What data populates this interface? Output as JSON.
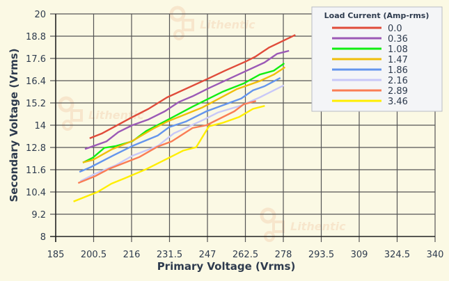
{
  "chart_data": {
    "type": "line",
    "title": "",
    "xlabel": "Primary Voltage (Vrms)",
    "ylabel": "Secondary Voltage (Vrms)",
    "xlim": [
      185,
      340
    ],
    "ylim": [
      8,
      20
    ],
    "xticks": [
      "185",
      "200.5",
      "216",
      "231.5",
      "247",
      "262.5",
      "278",
      "293.5",
      "309",
      "324.5",
      "340"
    ],
    "yticks": [
      "8",
      "9.2",
      "10.4",
      "11.6",
      "12.8",
      "14",
      "15.2",
      "16.4",
      "17.6",
      "18.8",
      "20"
    ],
    "grid": true,
    "legend": {
      "title": "Load Current (Amp-rms)",
      "placement": "top-right"
    },
    "watermark": "Lithentic",
    "series": [
      {
        "name": "0.0",
        "color": "#e04b3a",
        "points": [
          [
            199.2,
            13.31
          ],
          [
            204.0,
            13.56
          ],
          [
            216.3,
            14.44
          ],
          [
            222.9,
            14.88
          ],
          [
            230.5,
            15.5
          ],
          [
            247.1,
            16.5
          ],
          [
            254.2,
            16.94
          ],
          [
            262.7,
            17.44
          ],
          [
            266.5,
            17.69
          ],
          [
            272.2,
            18.19
          ],
          [
            282.6,
            18.85
          ]
        ]
      },
      {
        "name": "0.36",
        "color": "#9b59b6",
        "points": [
          [
            197.3,
            12.73
          ],
          [
            205.8,
            13.13
          ],
          [
            210.6,
            13.63
          ],
          [
            216.3,
            14.0
          ],
          [
            222.9,
            14.31
          ],
          [
            229.6,
            14.75
          ],
          [
            235.3,
            15.25
          ],
          [
            240.9,
            15.56
          ],
          [
            247.6,
            16.0
          ],
          [
            259.9,
            16.75
          ],
          [
            270.3,
            17.38
          ],
          [
            275.5,
            17.85
          ],
          [
            280.0,
            18.0
          ]
        ]
      },
      {
        "name": "1.08",
        "color": "#11ee11",
        "points": [
          [
            196.4,
            12.0
          ],
          [
            200.2,
            12.25
          ],
          [
            204.9,
            12.78
          ],
          [
            209.7,
            12.88
          ],
          [
            216.3,
            13.13
          ],
          [
            222.0,
            13.69
          ],
          [
            230.5,
            14.27
          ],
          [
            240.9,
            15.0
          ],
          [
            253.3,
            15.81
          ],
          [
            261.8,
            16.25
          ],
          [
            268.4,
            16.73
          ],
          [
            274.1,
            16.94
          ],
          [
            278.1,
            17.31
          ]
        ]
      },
      {
        "name": "1.47",
        "color": "#f0be0a",
        "points": [
          [
            196.4,
            12.0
          ],
          [
            200.2,
            12.13
          ],
          [
            207.8,
            12.69
          ],
          [
            216.3,
            13.15
          ],
          [
            224.8,
            13.81
          ],
          [
            230.5,
            14.19
          ],
          [
            244.7,
            14.94
          ],
          [
            258.9,
            15.94
          ],
          [
            268.4,
            16.38
          ],
          [
            274.1,
            16.73
          ],
          [
            278.4,
            17.1
          ]
        ]
      },
      {
        "name": "1.86",
        "color": "#6495ed",
        "points": [
          [
            195.0,
            11.5
          ],
          [
            199.2,
            11.73
          ],
          [
            208.7,
            12.38
          ],
          [
            216.3,
            12.88
          ],
          [
            226.7,
            13.44
          ],
          [
            231.4,
            13.9
          ],
          [
            238.1,
            14.19
          ],
          [
            246.6,
            14.75
          ],
          [
            260.8,
            15.44
          ],
          [
            265.6,
            15.88
          ],
          [
            270.3,
            16.1
          ],
          [
            276.5,
            16.53
          ]
        ]
      },
      {
        "name": "2.16",
        "color": "#c8c8f8",
        "points": [
          [
            195.4,
            11.0
          ],
          [
            201.1,
            11.38
          ],
          [
            209.7,
            11.85
          ],
          [
            216.3,
            12.35
          ],
          [
            226.7,
            12.88
          ],
          [
            233.3,
            13.56
          ],
          [
            245.7,
            14.31
          ],
          [
            251.4,
            14.69
          ],
          [
            260.8,
            15.06
          ],
          [
            268.4,
            15.5
          ],
          [
            277.9,
            16.13
          ]
        ]
      },
      {
        "name": "2.89",
        "color": "#fa7d55",
        "points": [
          [
            194.5,
            10.9
          ],
          [
            201.1,
            11.25
          ],
          [
            206.8,
            11.65
          ],
          [
            219.1,
            12.28
          ],
          [
            226.7,
            12.85
          ],
          [
            232.4,
            13.13
          ],
          [
            240.9,
            13.85
          ],
          [
            246.6,
            14.0
          ],
          [
            258.0,
            14.75
          ],
          [
            261.8,
            15.13
          ],
          [
            266.5,
            15.29
          ]
        ]
      },
      {
        "name": "3.46",
        "color": "#ffee00",
        "points": [
          [
            192.6,
            9.9
          ],
          [
            202.1,
            10.4
          ],
          [
            207.8,
            10.85
          ],
          [
            213.4,
            11.15
          ],
          [
            222.0,
            11.63
          ],
          [
            231.4,
            12.25
          ],
          [
            237.1,
            12.63
          ],
          [
            242.4,
            12.81
          ],
          [
            247.6,
            13.94
          ],
          [
            253.3,
            14.13
          ],
          [
            259.9,
            14.44
          ],
          [
            265.6,
            14.88
          ],
          [
            270.1,
            15.03
          ]
        ]
      }
    ]
  }
}
